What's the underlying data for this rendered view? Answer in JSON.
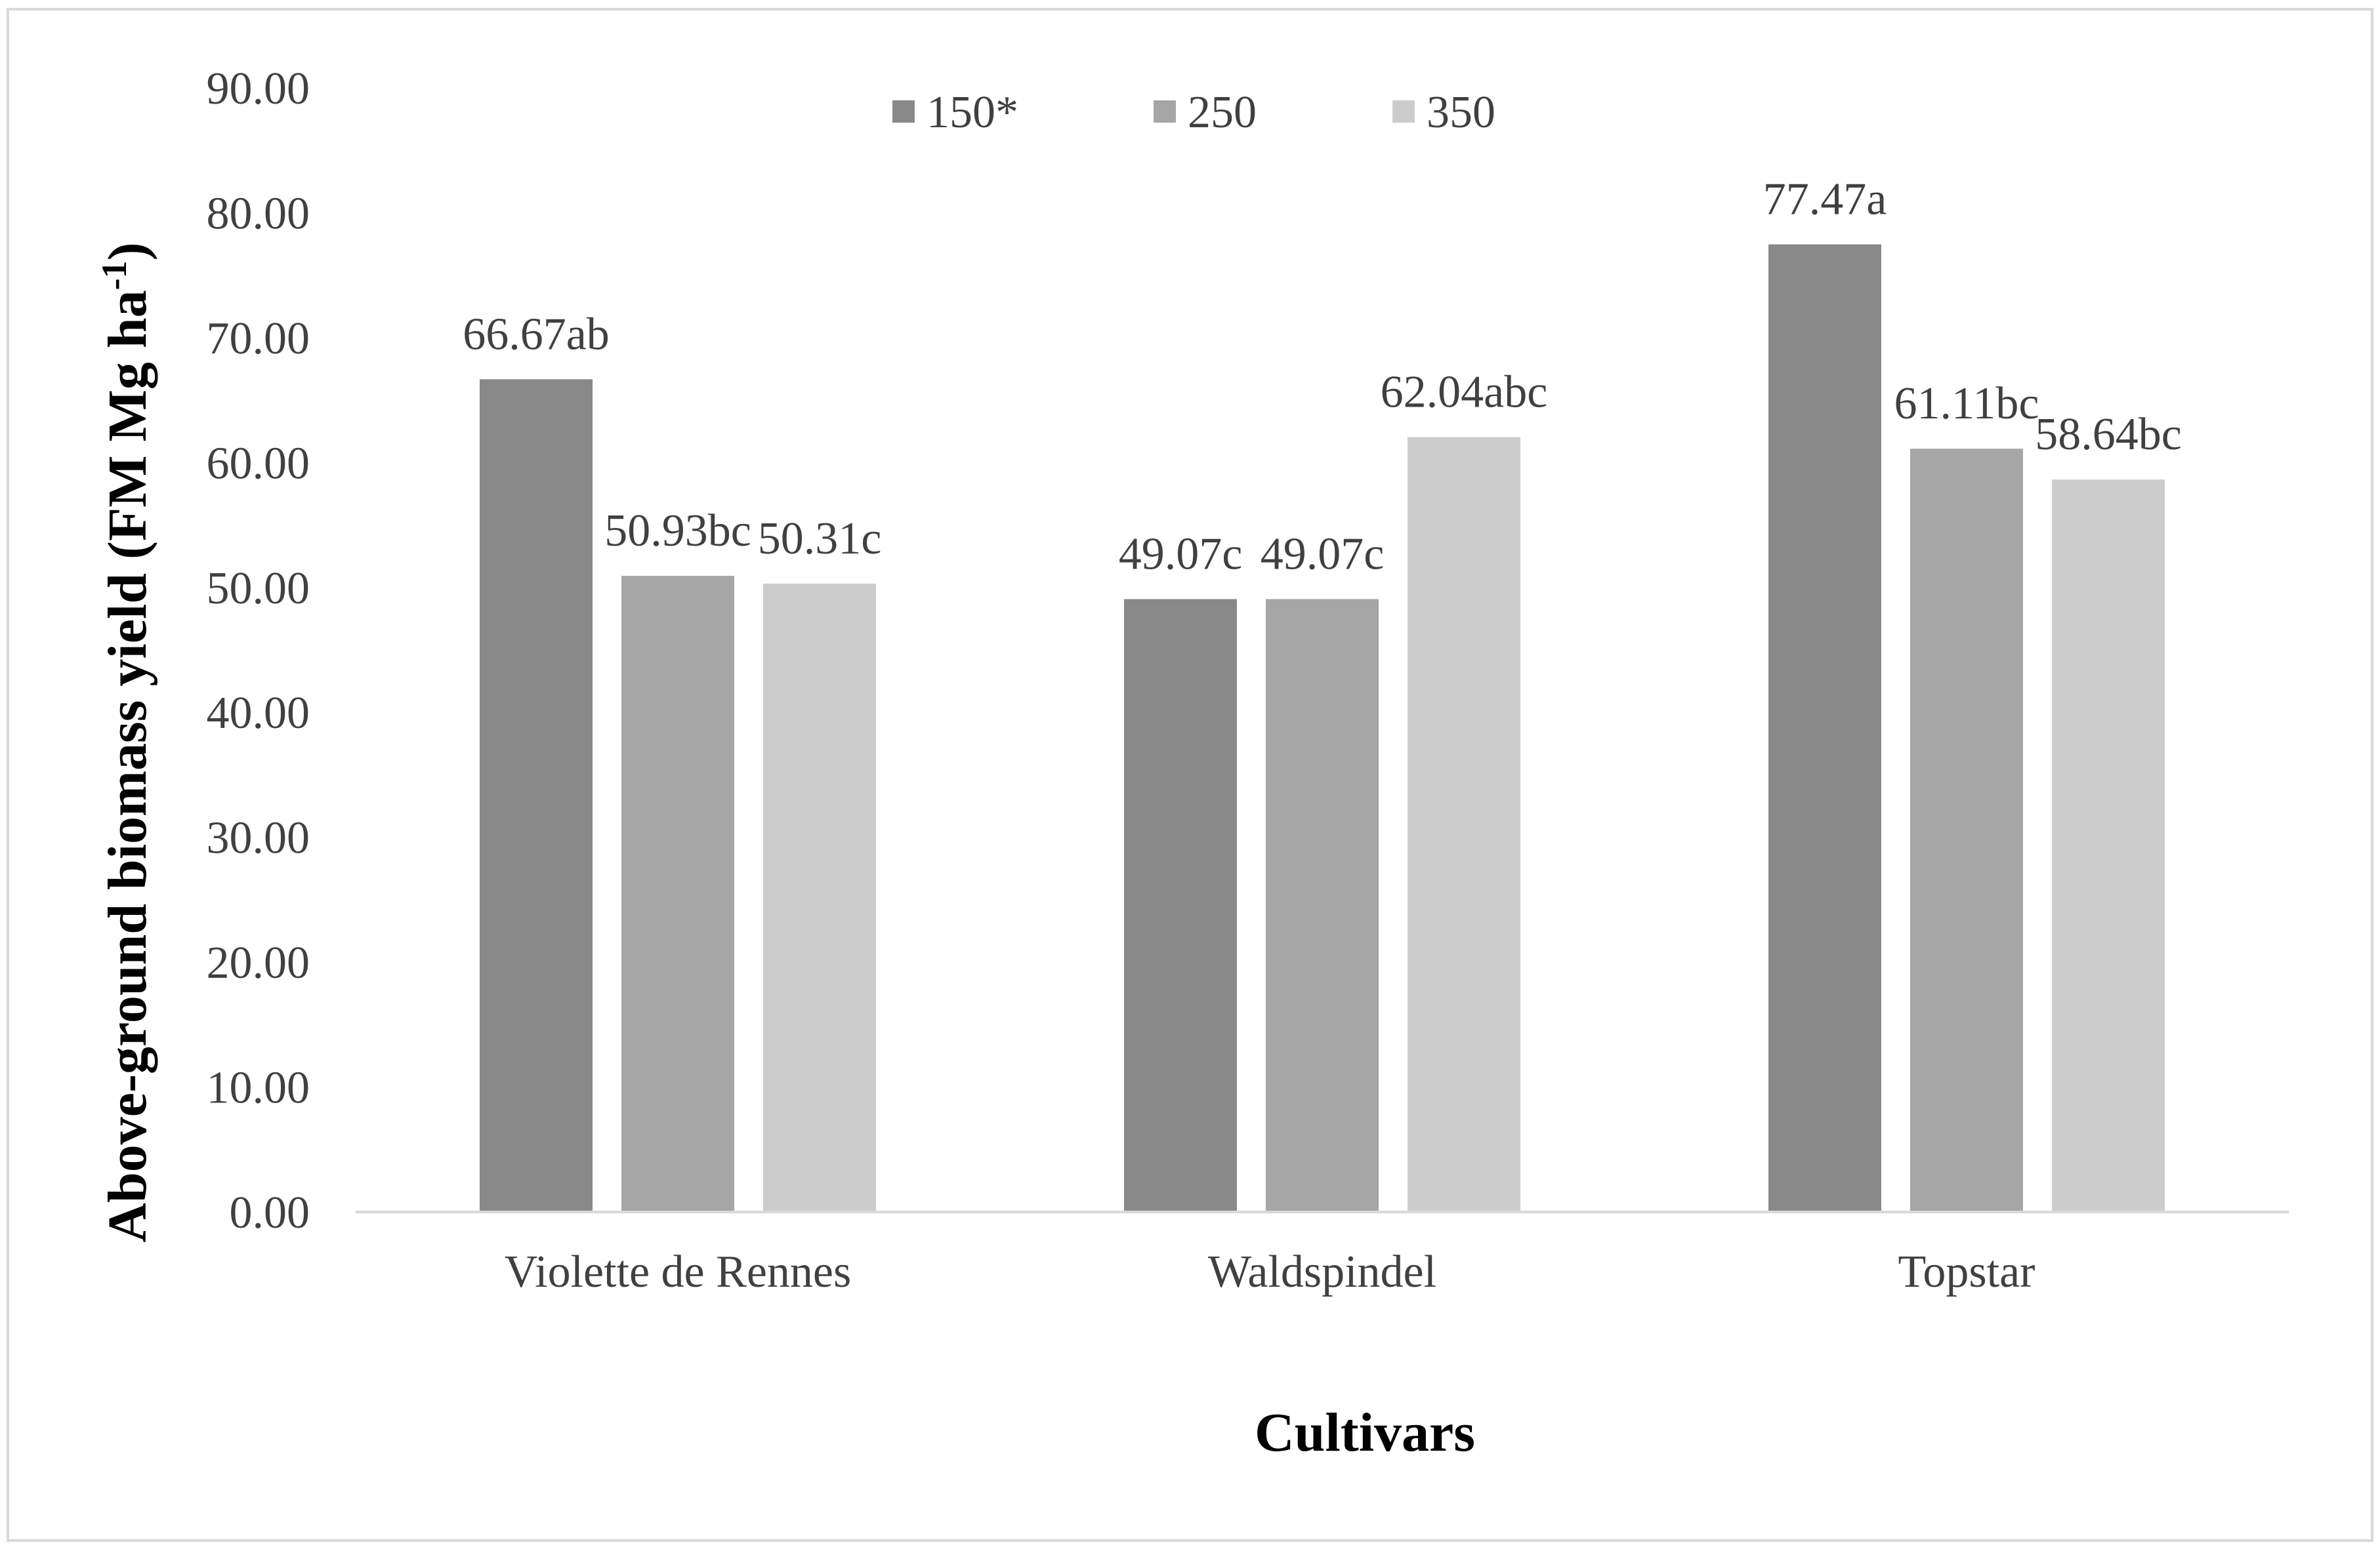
{
  "chart_data": {
    "type": "bar",
    "title": "",
    "xlabel": "Cultivars",
    "ylabel": {
      "main": "Above-ground biomass yield (FM Mg ha",
      "superscript": "-1",
      "close": ")"
    },
    "ylim": [
      0,
      90
    ],
    "ytick_step": 10,
    "ytick_labels": [
      "0.00",
      "10.00",
      "20.00",
      "30.00",
      "40.00",
      "50.00",
      "60.00",
      "70.00",
      "80.00",
      "90.00"
    ],
    "grid": false,
    "legend_position": "top-center",
    "categories": [
      "Violette de Rennes",
      "Waldspindel",
      "Topstar"
    ],
    "series": [
      {
        "name": "150*",
        "color": "#898989",
        "values": [
          66.67,
          49.07,
          77.47
        ],
        "labels": [
          "66.67ab",
          "49.07c",
          "77.47a"
        ]
      },
      {
        "name": "250",
        "color": "#a6a6a6",
        "values": [
          50.93,
          49.07,
          61.11
        ],
        "labels": [
          "50.93bc",
          "49.07c",
          "61.11bc"
        ]
      },
      {
        "name": "350",
        "color": "#cccccc",
        "values": [
          50.31,
          62.04,
          58.64
        ],
        "labels": [
          "50.31c",
          "62.04abc",
          "58.64bc"
        ]
      }
    ],
    "colors": {
      "axis_line": "#d9d9d9",
      "frame": "#d9d9d9"
    }
  }
}
